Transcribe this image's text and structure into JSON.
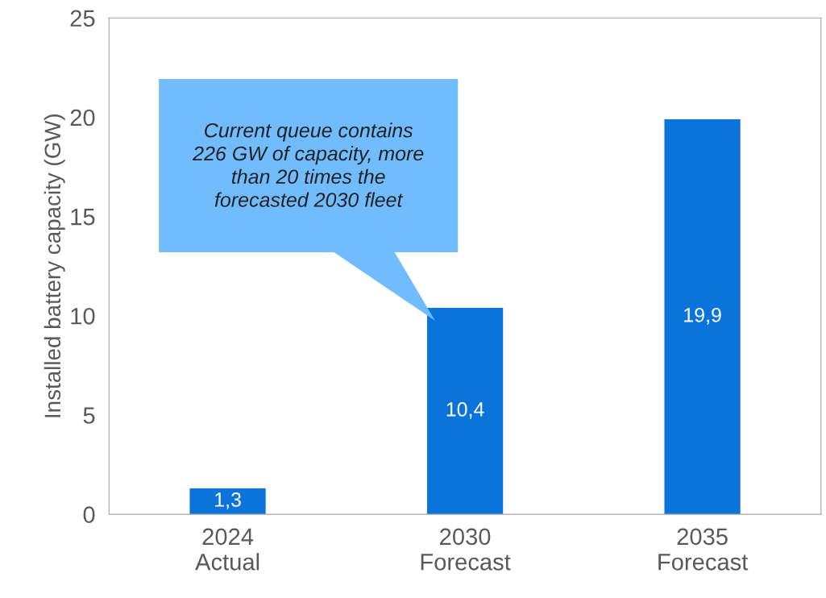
{
  "chart_data": {
    "type": "bar",
    "ylabel": "Installed battery capacity (GW)",
    "categories": [
      "2024\nActual",
      "2030\nForecast",
      "2035\nForecast"
    ],
    "values": [
      1.3,
      10.4,
      19.9
    ],
    "color": "#0a74da",
    "value_labels": [
      "1,3",
      "10,4",
      "19,9"
    ],
    "ylim": [
      0,
      25
    ],
    "yticks": [
      0,
      5,
      10,
      15,
      20,
      25
    ],
    "grid": false,
    "legend": false,
    "annotations": [
      "Current queue contains\n226 GW of capacity, more\nthan 20 times the\nforecasted 2030 fleet"
    ]
  }
}
